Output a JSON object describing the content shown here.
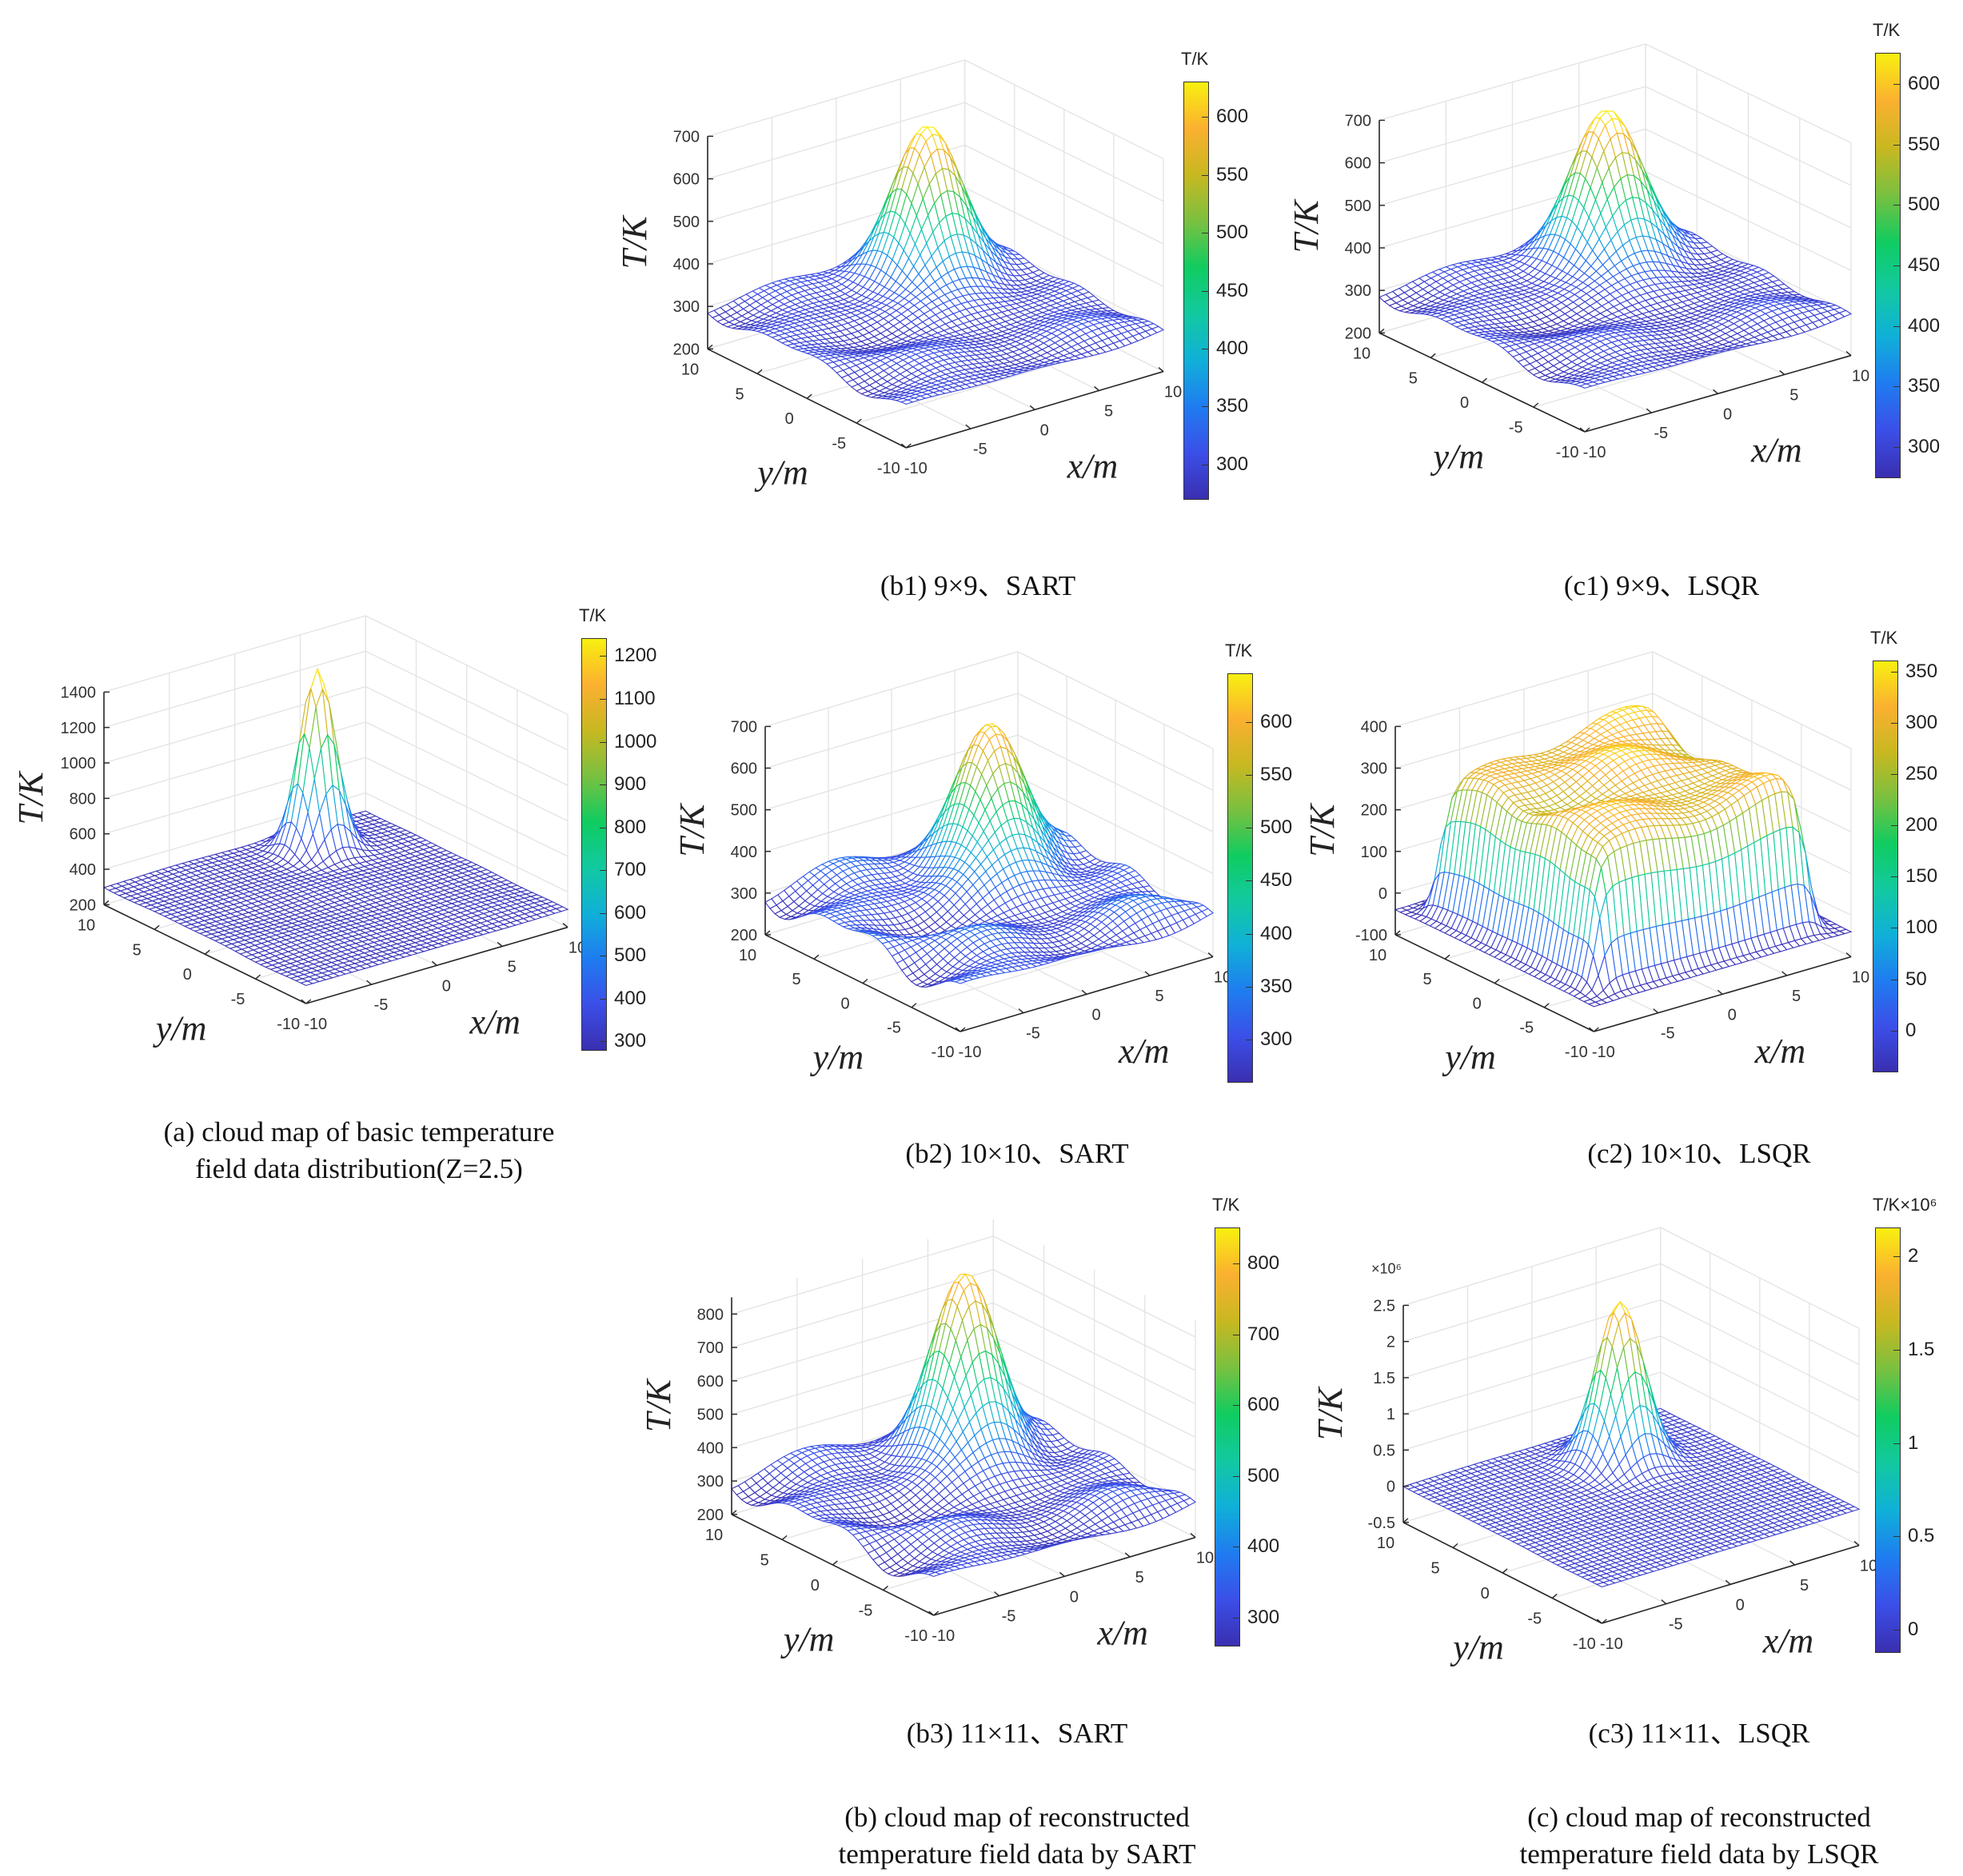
{
  "colormap": [
    "#3a2fb0",
    "#3b4fe8",
    "#1f7cf0",
    "#10b0d8",
    "#12c9a0",
    "#10cc60",
    "#7ac040",
    "#c8b820",
    "#fbb030",
    "#f8f010"
  ],
  "group_captions": {
    "b": [
      "(b) cloud map of reconstructed",
      "temperature field data by SART"
    ],
    "c": [
      "(c) cloud map of reconstructed",
      "temperature field data by LSQR"
    ]
  },
  "chart_data": [
    {
      "id": "a",
      "type": "surface",
      "caption": [
        "(a) cloud map of basic temperature",
        "field data distribution(Z=2.5)"
      ],
      "xlabel": "x/m",
      "ylabel": "y/m",
      "zlabel": "T/K",
      "x_ticks": [
        "-10",
        "-5",
        "0",
        "5",
        "10"
      ],
      "y_ticks": [
        "-10",
        "-5",
        "0",
        "5",
        "10"
      ],
      "z_ticks": [
        "200",
        "400",
        "600",
        "800",
        "1000",
        "1200",
        "1400"
      ],
      "zlim": [
        200,
        1400
      ],
      "z_exponent": "",
      "colorbar": {
        "title": "T/K",
        "exponent": "",
        "range": [
          280,
          1240
        ],
        "ticks": [
          "300",
          "400",
          "500",
          "600",
          "700",
          "800",
          "900",
          "1000",
          "1100",
          "1200"
        ]
      },
      "surface": {
        "background_T": 300,
        "ripple_T": 4,
        "peak": {
          "x": 4,
          "y": 7,
          "T": 1310,
          "sigma": 1.1
        }
      }
    },
    {
      "id": "b1",
      "type": "surface",
      "caption": [
        "(b1) 9×9、SART"
      ],
      "xlabel": "x/m",
      "ylabel": "y/m",
      "zlabel": "T/K",
      "x_ticks": [
        "-10",
        "-5",
        "0",
        "5",
        "10"
      ],
      "y_ticks": [
        "-10",
        "-5",
        "0",
        "5",
        "10"
      ],
      "z_ticks": [
        "200",
        "300",
        "400",
        "500",
        "600",
        "700"
      ],
      "zlim": [
        200,
        700
      ],
      "z_exponent": "",
      "colorbar": {
        "title": "T/K",
        "exponent": "",
        "range": [
          270,
          630
        ],
        "ticks": [
          "300",
          "350",
          "400",
          "450",
          "500",
          "550",
          "600"
        ]
      },
      "surface": {
        "background_T": 295,
        "ripple_T": 14,
        "peak": {
          "x": 4,
          "y": 6,
          "T": 640,
          "sigma": 2.2
        }
      }
    },
    {
      "id": "c1",
      "type": "surface",
      "caption": [
        "(c1) 9×9、LSQR"
      ],
      "xlabel": "x/m",
      "ylabel": "y/m",
      "zlabel": "T/K",
      "x_ticks": [
        "-10",
        "-5",
        "0",
        "5",
        "10"
      ],
      "y_ticks": [
        "-10",
        "-5",
        "0",
        "5",
        "10"
      ],
      "z_ticks": [
        "200",
        "300",
        "400",
        "500",
        "600",
        "700"
      ],
      "zlim": [
        200,
        700
      ],
      "z_exponent": "",
      "colorbar": {
        "title": "T/K",
        "exponent": "",
        "range": [
          275,
          625
        ],
        "ticks": [
          "300",
          "350",
          "400",
          "450",
          "500",
          "550",
          "600"
        ]
      },
      "surface": {
        "background_T": 295,
        "ripple_T": 14,
        "peak": {
          "x": 4,
          "y": 6,
          "T": 640,
          "sigma": 2.2
        }
      }
    },
    {
      "id": "b2",
      "type": "surface",
      "caption": [
        "(b2) 10×10、SART"
      ],
      "xlabel": "x/m",
      "ylabel": "y/m",
      "zlabel": "T/K",
      "x_ticks": [
        "-10",
        "-5",
        "0",
        "5",
        "10"
      ],
      "y_ticks": [
        "-10",
        "-5",
        "0",
        "5",
        "10"
      ],
      "z_ticks": [
        "200",
        "300",
        "400",
        "500",
        "600",
        "700"
      ],
      "zlim": [
        200,
        700
      ],
      "z_exponent": "",
      "colorbar": {
        "title": "T/K",
        "exponent": "",
        "range": [
          260,
          645
        ],
        "ticks": [
          "300",
          "350",
          "400",
          "450",
          "500",
          "550",
          "600"
        ]
      },
      "surface": {
        "background_T": 300,
        "ripple_T": 28,
        "peak": {
          "x": 4,
          "y": 5,
          "T": 640,
          "sigma": 2.3
        }
      }
    },
    {
      "id": "c2",
      "type": "surface",
      "caption": [
        "(c2) 10×10、LSQR"
      ],
      "xlabel": "x/m",
      "ylabel": "y/m",
      "zlabel": "T/K",
      "x_ticks": [
        "-10",
        "-5",
        "0",
        "5",
        "10"
      ],
      "y_ticks": [
        "-10",
        "-5",
        "0",
        "5",
        "10"
      ],
      "z_ticks": [
        "-100",
        "0",
        "100",
        "200",
        "300",
        "400"
      ],
      "zlim": [
        -100,
        400
      ],
      "z_exponent": "",
      "colorbar": {
        "title": "T/K",
        "exponent": "",
        "range": [
          -40,
          360
        ],
        "ticks": [
          "0",
          "50",
          "100",
          "150",
          "200",
          "250",
          "300",
          "350"
        ]
      },
      "surface": {
        "background_T": -40,
        "plateau_T": 300,
        "ripple_T": 25,
        "peak": {
          "x": 3,
          "y": 6,
          "T": 360,
          "sigma": 2.5
        }
      }
    },
    {
      "id": "b3",
      "type": "surface",
      "caption": [
        "(b3) 11×11、SART"
      ],
      "xlabel": "x/m",
      "ylabel": "y/m",
      "zlabel": "T/K",
      "x_ticks": [
        "-10",
        "-5",
        "0",
        "5",
        "10"
      ],
      "y_ticks": [
        "-10",
        "-5",
        "0",
        "5",
        "10"
      ],
      "z_ticks": [
        "200",
        "300",
        "400",
        "500",
        "600",
        "700",
        "800"
      ],
      "zlim": [
        200,
        850
      ],
      "z_exponent": "",
      "colorbar": {
        "title": "T/K",
        "exponent": "",
        "range": [
          260,
          850
        ],
        "ticks": [
          "300",
          "400",
          "500",
          "600",
          "700",
          "800"
        ]
      },
      "surface": {
        "background_T": 300,
        "ripple_T": 30,
        "peak": {
          "x": 4,
          "y": 5,
          "T": 840,
          "sigma": 2.1
        }
      }
    },
    {
      "id": "c3",
      "type": "surface",
      "caption": [
        "(c3) 11×11、LSQR"
      ],
      "xlabel": "x/m",
      "ylabel": "y/m",
      "zlabel": "T/K",
      "x_ticks": [
        "-10",
        "-5",
        "0",
        "5",
        "10"
      ],
      "y_ticks": [
        "-10",
        "-5",
        "0",
        "5",
        "10"
      ],
      "z_ticks": [
        "-0.5",
        "0",
        "0.5",
        "1",
        "1.5",
        "2",
        "2.5"
      ],
      "zlim": [
        -0.5,
        2.5
      ],
      "z_exponent": "×10⁶",
      "colorbar": {
        "title": "T/K",
        "exponent": "×10⁶",
        "range": [
          -0.12,
          2.15
        ],
        "ticks": [
          "0",
          "0.5",
          "1",
          "1.5",
          "2"
        ]
      },
      "surface": {
        "background_T": 0,
        "ripple_T": 0.005,
        "peak": {
          "x": 3,
          "y": 5,
          "T": 2.2,
          "sigma": 1.5
        }
      }
    }
  ]
}
